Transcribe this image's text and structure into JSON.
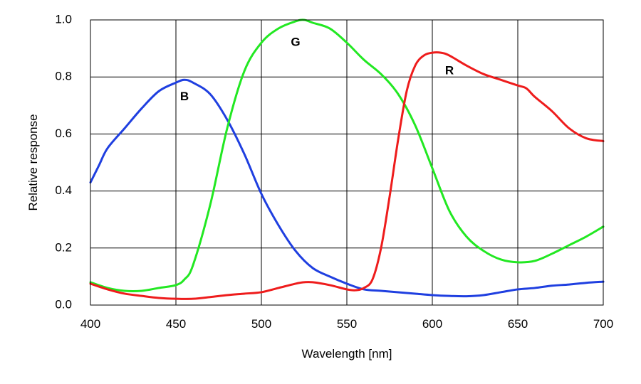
{
  "chart_data": {
    "type": "line",
    "title": "",
    "xlabel": "Wavelength [nm]",
    "ylabel": "Relative response",
    "xlim": [
      400,
      700
    ],
    "ylim": [
      0,
      1.0
    ],
    "xticks": [
      400,
      450,
      500,
      550,
      600,
      650,
      700
    ],
    "yticks": [
      0.0,
      0.2,
      0.4,
      0.6,
      0.8,
      1.0
    ],
    "xtick_labels": [
      "400",
      "450",
      "500",
      "550",
      "600",
      "650",
      "700"
    ],
    "ytick_labels": [
      "0.0",
      "0.2",
      "0.4",
      "0.6",
      "0.8",
      "1.0"
    ],
    "grid": true,
    "series": [
      {
        "name": "B",
        "color": "#1f3fe0",
        "label_at": [
          455,
          0.73
        ],
        "x": [
          400,
          405,
          410,
          420,
          430,
          440,
          450,
          455,
          460,
          470,
          480,
          490,
          500,
          510,
          520,
          530,
          540,
          550,
          560,
          570,
          580,
          590,
          600,
          610,
          620,
          630,
          640,
          650,
          660,
          670,
          680,
          690,
          700
        ],
        "y": [
          0.43,
          0.49,
          0.55,
          0.62,
          0.69,
          0.75,
          0.78,
          0.79,
          0.78,
          0.74,
          0.65,
          0.53,
          0.39,
          0.28,
          0.19,
          0.13,
          0.1,
          0.075,
          0.055,
          0.05,
          0.045,
          0.04,
          0.035,
          0.032,
          0.031,
          0.035,
          0.045,
          0.055,
          0.06,
          0.068,
          0.072,
          0.078,
          0.082
        ]
      },
      {
        "name": "G",
        "color": "#22e822",
        "label_at": [
          520,
          0.92
        ],
        "x": [
          400,
          410,
          420,
          430,
          440,
          450,
          455,
          460,
          470,
          480,
          490,
          500,
          510,
          520,
          525,
          530,
          540,
          550,
          560,
          570,
          580,
          590,
          600,
          610,
          620,
          630,
          640,
          650,
          660,
          670,
          680,
          690,
          700
        ],
        "y": [
          0.08,
          0.06,
          0.05,
          0.05,
          0.06,
          0.07,
          0.09,
          0.14,
          0.35,
          0.62,
          0.82,
          0.92,
          0.97,
          0.995,
          1.0,
          0.99,
          0.97,
          0.92,
          0.86,
          0.81,
          0.74,
          0.63,
          0.48,
          0.33,
          0.24,
          0.19,
          0.16,
          0.15,
          0.155,
          0.18,
          0.21,
          0.24,
          0.275
        ]
      },
      {
        "name": "R",
        "color": "#ee1c1c",
        "label_at": [
          610,
          0.82
        ],
        "x": [
          400,
          410,
          420,
          430,
          440,
          450,
          460,
          470,
          480,
          490,
          500,
          510,
          520,
          525,
          530,
          540,
          550,
          555,
          560,
          565,
          570,
          575,
          580,
          585,
          590,
          595,
          600,
          605,
          610,
          620,
          630,
          640,
          650,
          655,
          660,
          670,
          680,
          690,
          700
        ],
        "y": [
          0.075,
          0.055,
          0.04,
          0.032,
          0.025,
          0.022,
          0.022,
          0.028,
          0.035,
          0.04,
          0.045,
          0.06,
          0.075,
          0.08,
          0.08,
          0.07,
          0.055,
          0.052,
          0.06,
          0.09,
          0.2,
          0.38,
          0.58,
          0.75,
          0.84,
          0.875,
          0.885,
          0.885,
          0.875,
          0.84,
          0.81,
          0.79,
          0.77,
          0.76,
          0.73,
          0.68,
          0.62,
          0.585,
          0.575
        ]
      }
    ]
  }
}
